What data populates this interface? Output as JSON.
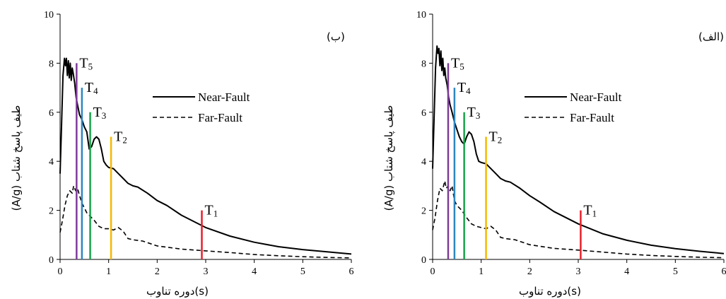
{
  "chart_data": [
    {
      "type": "line",
      "panel_label": "(ب)",
      "xlabel": "(s)دوره تناوب",
      "ylabel": "طیف پاسخ شتاب (A/g)",
      "xlim": [
        0,
        6
      ],
      "ylim": [
        0,
        10
      ],
      "xticks": [
        0,
        1,
        2,
        3,
        4,
        5,
        6
      ],
      "yticks": [
        0,
        2,
        4,
        6,
        8,
        10
      ],
      "legend_position": "right-middle",
      "series": [
        {
          "name": "Near-Fault",
          "style": "solid",
          "color": "#000000",
          "x": [
            0.0,
            0.03,
            0.06,
            0.09,
            0.11,
            0.13,
            0.15,
            0.17,
            0.19,
            0.21,
            0.23,
            0.25,
            0.27,
            0.3,
            0.33,
            0.36,
            0.4,
            0.45,
            0.5,
            0.55,
            0.6,
            0.65,
            0.7,
            0.75,
            0.8,
            0.85,
            0.9,
            0.95,
            1.0,
            1.1,
            1.2,
            1.3,
            1.4,
            1.5,
            1.6,
            1.8,
            2.0,
            2.2,
            2.5,
            3.0,
            3.5,
            4.0,
            4.5,
            5.0,
            5.5,
            6.0
          ],
          "y": [
            3.5,
            5.5,
            7.5,
            8.2,
            7.9,
            8.2,
            7.5,
            8.1,
            7.4,
            8.0,
            7.3,
            7.8,
            7.6,
            7.2,
            6.6,
            6.3,
            5.9,
            5.7,
            5.4,
            5.2,
            4.5,
            4.6,
            4.9,
            5.0,
            4.9,
            4.5,
            4.0,
            3.85,
            3.75,
            3.7,
            3.5,
            3.3,
            3.1,
            3.0,
            2.95,
            2.7,
            2.4,
            2.2,
            1.8,
            1.3,
            0.95,
            0.7,
            0.52,
            0.4,
            0.31,
            0.22
          ]
        },
        {
          "name": "Far-Fault",
          "style": "dashed",
          "color": "#000000",
          "x": [
            0.0,
            0.05,
            0.1,
            0.15,
            0.2,
            0.25,
            0.28,
            0.32,
            0.36,
            0.4,
            0.45,
            0.5,
            0.55,
            0.6,
            0.7,
            0.8,
            0.9,
            1.0,
            1.1,
            1.2,
            1.3,
            1.4,
            1.5,
            1.7,
            2.0,
            2.5,
            3.0,
            3.5,
            4.0,
            4.5,
            5.0,
            5.5,
            6.0
          ],
          "y": [
            1.1,
            1.6,
            2.2,
            2.6,
            2.8,
            2.7,
            3.0,
            2.8,
            2.9,
            2.6,
            2.3,
            2.1,
            1.9,
            1.8,
            1.6,
            1.35,
            1.25,
            1.25,
            1.2,
            1.3,
            1.15,
            0.85,
            0.8,
            0.75,
            0.55,
            0.42,
            0.35,
            0.28,
            0.2,
            0.15,
            0.11,
            0.08,
            0.06
          ]
        }
      ],
      "period_markers": [
        {
          "name": "T1",
          "x": 2.92,
          "height": 2.0,
          "color": "#e8202a"
        },
        {
          "name": "T2",
          "x": 1.05,
          "height": 5.0,
          "color": "#f5b800"
        },
        {
          "name": "T3",
          "x": 0.62,
          "height": 6.0,
          "color": "#17a34a"
        },
        {
          "name": "T4",
          "x": 0.45,
          "height": 7.0,
          "color": "#2e86c1"
        },
        {
          "name": "T5",
          "x": 0.34,
          "height": 8.0,
          "color": "#7d3c98"
        }
      ]
    },
    {
      "type": "line",
      "panel_label": "(الف)",
      "xlabel": "(s)دوره تناوب",
      "ylabel": "طیف پاسخ شتاب (A/g)",
      "xlim": [
        0,
        6
      ],
      "ylim": [
        0,
        10
      ],
      "xticks": [
        0,
        1,
        2,
        3,
        4,
        5,
        6
      ],
      "yticks": [
        0,
        2,
        4,
        6,
        8,
        10
      ],
      "legend_position": "right-middle",
      "series": [
        {
          "name": "Near-Fault",
          "style": "solid",
          "color": "#000000",
          "x": [
            0.0,
            0.03,
            0.06,
            0.09,
            0.11,
            0.13,
            0.15,
            0.17,
            0.19,
            0.21,
            0.23,
            0.25,
            0.27,
            0.3,
            0.33,
            0.36,
            0.4,
            0.45,
            0.5,
            0.55,
            0.6,
            0.65,
            0.7,
            0.75,
            0.8,
            0.85,
            0.9,
            0.95,
            1.0,
            1.1,
            1.2,
            1.3,
            1.4,
            1.5,
            1.6,
            1.8,
            2.0,
            2.2,
            2.5,
            3.0,
            3.5,
            4.0,
            4.5,
            5.0,
            5.5,
            6.0
          ],
          "y": [
            3.7,
            5.8,
            7.8,
            8.7,
            8.4,
            8.6,
            7.9,
            8.5,
            7.7,
            8.2,
            7.5,
            7.8,
            7.4,
            7.1,
            6.6,
            6.3,
            6.0,
            5.6,
            5.3,
            5.0,
            4.8,
            4.7,
            5.0,
            5.2,
            5.1,
            4.8,
            4.3,
            4.0,
            3.95,
            3.9,
            3.7,
            3.5,
            3.3,
            3.2,
            3.15,
            2.9,
            2.6,
            2.35,
            1.95,
            1.45,
            1.05,
            0.78,
            0.58,
            0.44,
            0.33,
            0.24
          ]
        },
        {
          "name": "Far-Fault",
          "style": "dashed",
          "color": "#000000",
          "x": [
            0.0,
            0.05,
            0.1,
            0.15,
            0.2,
            0.25,
            0.28,
            0.32,
            0.36,
            0.4,
            0.45,
            0.5,
            0.55,
            0.6,
            0.7,
            0.8,
            0.9,
            1.0,
            1.1,
            1.2,
            1.3,
            1.4,
            1.5,
            1.7,
            2.0,
            2.5,
            3.0,
            3.5,
            4.0,
            4.5,
            5.0,
            5.5,
            6.0
          ],
          "y": [
            1.2,
            1.7,
            2.4,
            2.9,
            2.8,
            3.2,
            2.9,
            3.0,
            2.8,
            3.0,
            2.4,
            2.2,
            2.1,
            2.0,
            1.7,
            1.45,
            1.35,
            1.3,
            1.25,
            1.35,
            1.2,
            0.9,
            0.85,
            0.8,
            0.6,
            0.45,
            0.38,
            0.3,
            0.22,
            0.16,
            0.12,
            0.09,
            0.07
          ]
        }
      ],
      "period_markers": [
        {
          "name": "T1",
          "x": 3.05,
          "height": 2.0,
          "color": "#e8202a"
        },
        {
          "name": "T2",
          "x": 1.1,
          "height": 5.0,
          "color": "#f5b800"
        },
        {
          "name": "T3",
          "x": 0.65,
          "height": 6.0,
          "color": "#17a34a"
        },
        {
          "name": "T4",
          "x": 0.45,
          "height": 7.0,
          "color": "#2e86c1"
        },
        {
          "name": "T5",
          "x": 0.32,
          "height": 8.0,
          "color": "#7d3c98"
        }
      ]
    }
  ]
}
